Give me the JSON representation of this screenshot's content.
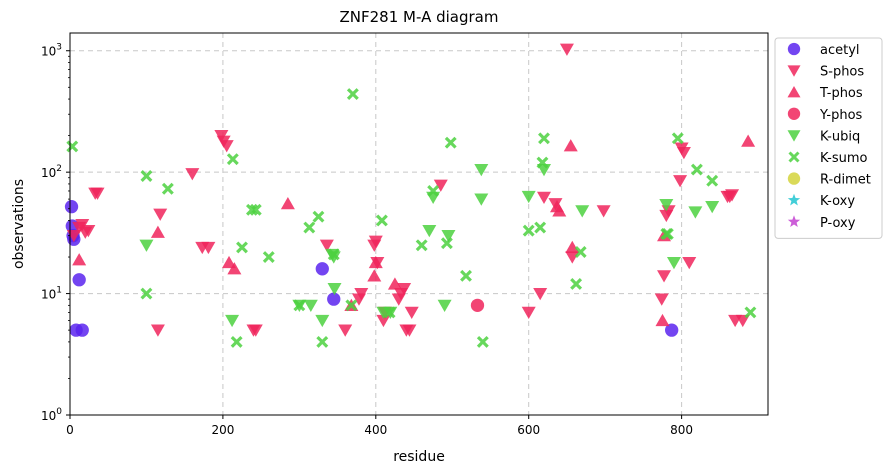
{
  "chart_data": {
    "type": "scatter",
    "title": "ZNF281 M-A diagram",
    "xlabel": "residue",
    "ylabel": "observations",
    "xlim": [
      0,
      913
    ],
    "ylim": [
      1,
      1400
    ],
    "y_scale": "log",
    "x_ticks": [
      0,
      200,
      400,
      600,
      800
    ],
    "x_tick_labels": [
      "0",
      "200",
      "400",
      "600",
      "800"
    ],
    "y_ticks": [
      1,
      10,
      100,
      1000
    ],
    "y_tick_labels": [
      "10^0",
      "10^1",
      "10^2",
      "10^3"
    ],
    "grid": true,
    "legend_position": "outside-right",
    "series": [
      {
        "name": "acetyl",
        "marker": "circle",
        "color": "#5a25ee",
        "points": [
          [
            2,
            52
          ],
          [
            3,
            36
          ],
          [
            4,
            30
          ],
          [
            5,
            28
          ],
          [
            8,
            5
          ],
          [
            12,
            13
          ],
          [
            16,
            5
          ],
          [
            330,
            16
          ],
          [
            345,
            9
          ],
          [
            787,
            5
          ]
        ]
      },
      {
        "name": "S-phos",
        "marker": "triangle-down",
        "color": "#f0245c",
        "points": [
          [
            5,
            30
          ],
          [
            12,
            35
          ],
          [
            16,
            37
          ],
          [
            20,
            32
          ],
          [
            24,
            33
          ],
          [
            33,
            67
          ],
          [
            36,
            67
          ],
          [
            115,
            5
          ],
          [
            118,
            45
          ],
          [
            160,
            97
          ],
          [
            173,
            24
          ],
          [
            181,
            24
          ],
          [
            198,
            200
          ],
          [
            201,
            180
          ],
          [
            205,
            165
          ],
          [
            240,
            5
          ],
          [
            243,
            5
          ],
          [
            336,
            25
          ],
          [
            360,
            5
          ],
          [
            378,
            9
          ],
          [
            381,
            10
          ],
          [
            398,
            25
          ],
          [
            400,
            27
          ],
          [
            402,
            18
          ],
          [
            410,
            6
          ],
          [
            412,
            7
          ],
          [
            430,
            9
          ],
          [
            433,
            10
          ],
          [
            437,
            11
          ],
          [
            440,
            5
          ],
          [
            444,
            5
          ],
          [
            447,
            7
          ],
          [
            485,
            78
          ],
          [
            600,
            7
          ],
          [
            615,
            10
          ],
          [
            620,
            62
          ],
          [
            635,
            55
          ],
          [
            650,
            1030
          ],
          [
            657,
            20
          ],
          [
            698,
            48
          ],
          [
            774,
            9
          ],
          [
            777,
            14
          ],
          [
            780,
            44
          ],
          [
            783,
            48
          ],
          [
            798,
            85
          ],
          [
            800,
            158
          ],
          [
            803,
            145
          ],
          [
            810,
            18
          ],
          [
            860,
            63
          ],
          [
            863,
            63
          ],
          [
            866,
            65
          ],
          [
            870,
            6
          ],
          [
            880,
            6
          ]
        ]
      },
      {
        "name": "T-phos",
        "marker": "triangle-up",
        "color": "#f0245c",
        "points": [
          [
            12,
            19
          ],
          [
            115,
            32
          ],
          [
            208,
            18
          ],
          [
            215,
            16
          ],
          [
            285,
            55
          ],
          [
            368,
            8
          ],
          [
            398,
            14
          ],
          [
            400,
            18
          ],
          [
            425,
            12
          ],
          [
            637,
            52
          ],
          [
            640,
            48
          ],
          [
            655,
            165
          ],
          [
            657,
            24
          ],
          [
            775,
            6
          ],
          [
            777,
            30
          ],
          [
            887,
            180
          ]
        ]
      },
      {
        "name": "Y-phos",
        "marker": "circle",
        "color": "#f0245c",
        "points": [
          [
            533,
            8
          ]
        ]
      },
      {
        "name": "K-ubiq",
        "marker": "triangle-down",
        "color": "#4cd13f",
        "points": [
          [
            100,
            25
          ],
          [
            212,
            6
          ],
          [
            300,
            8
          ],
          [
            315,
            8
          ],
          [
            330,
            6
          ],
          [
            343,
            21
          ],
          [
            345,
            20
          ],
          [
            346,
            11
          ],
          [
            410,
            7
          ],
          [
            419,
            7
          ],
          [
            470,
            33
          ],
          [
            475,
            62
          ],
          [
            490,
            8
          ],
          [
            495,
            30
          ],
          [
            538,
            105
          ],
          [
            538,
            60
          ],
          [
            600,
            63
          ],
          [
            620,
            105
          ],
          [
            670,
            48
          ],
          [
            780,
            54
          ],
          [
            790,
            18
          ],
          [
            818,
            47
          ],
          [
            840,
            52
          ]
        ]
      },
      {
        "name": "K-sumo",
        "marker": "x-bold",
        "color": "#4cd13f",
        "points": [
          [
            3,
            163
          ],
          [
            100,
            93
          ],
          [
            100,
            10
          ],
          [
            128,
            73
          ],
          [
            213,
            128
          ],
          [
            218,
            4
          ],
          [
            225,
            24
          ],
          [
            238,
            49
          ],
          [
            243,
            49
          ],
          [
            260,
            20
          ],
          [
            300,
            8
          ],
          [
            313,
            35
          ],
          [
            325,
            43
          ],
          [
            330,
            4
          ],
          [
            345,
            21
          ],
          [
            368,
            8
          ],
          [
            370,
            440
          ],
          [
            408,
            40
          ],
          [
            418,
            7
          ],
          [
            460,
            25
          ],
          [
            475,
            70
          ],
          [
            493,
            26
          ],
          [
            498,
            175
          ],
          [
            518,
            14
          ],
          [
            540,
            4
          ],
          [
            600,
            33
          ],
          [
            615,
            35
          ],
          [
            618,
            120
          ],
          [
            620,
            190
          ],
          [
            662,
            12
          ],
          [
            668,
            22
          ],
          [
            780,
            31
          ],
          [
            782,
            31
          ],
          [
            795,
            190
          ],
          [
            820,
            105
          ],
          [
            840,
            85
          ],
          [
            890,
            7
          ]
        ]
      },
      {
        "name": "R-dimet",
        "marker": "circle",
        "color": "#d4d43c",
        "points": []
      },
      {
        "name": "K-oxy",
        "marker": "star",
        "color": "#2dc9d4",
        "points": []
      },
      {
        "name": "P-oxy",
        "marker": "star",
        "color": "#c64cd4",
        "points": []
      }
    ]
  }
}
